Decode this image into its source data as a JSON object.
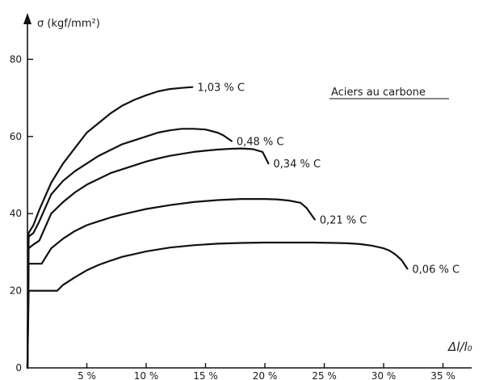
{
  "chart_data": {
    "type": "line",
    "title": "Aciers au carbone",
    "ylabel": "σ (kgf/mm²)",
    "xlabel": "Δl/l₀",
    "xlim": [
      0,
      37
    ],
    "ylim": [
      0,
      88
    ],
    "x_ticks": [
      {
        "value": 5,
        "label": "5 %"
      },
      {
        "value": 10,
        "label": "10 %"
      },
      {
        "value": 15,
        "label": "15 %"
      },
      {
        "value": 20,
        "label": "20 %"
      },
      {
        "value": 25,
        "label": "25 %"
      },
      {
        "value": 30,
        "label": "30 %"
      },
      {
        "value": 35,
        "label": "35 %"
      }
    ],
    "y_ticks": [
      {
        "value": 0,
        "label": "0"
      },
      {
        "value": 20,
        "label": "20"
      },
      {
        "value": 40,
        "label": "40"
      },
      {
        "value": 60,
        "label": "60"
      },
      {
        "value": 80,
        "label": "80"
      }
    ],
    "grid": false,
    "legend": "none",
    "series": [
      {
        "name": "1,03 % C",
        "x": [
          0,
          0.1,
          0.5,
          1,
          2,
          3,
          4,
          5,
          6,
          7,
          8,
          9,
          10,
          11,
          12,
          13,
          13.9
        ],
        "y": [
          0,
          35,
          37,
          41,
          48,
          53,
          57,
          61,
          63.5,
          66,
          68,
          69.5,
          70.7,
          71.7,
          72.3,
          72.6,
          72.8
        ]
      },
      {
        "name": "0,48 % C",
        "x": [
          0,
          0.1,
          0.5,
          1,
          2,
          3,
          4,
          5,
          6,
          7,
          8,
          9,
          10,
          11,
          12,
          13,
          14,
          15,
          16,
          16.5,
          17.2
        ],
        "y": [
          0,
          34,
          35,
          38,
          45,
          48.5,
          51,
          53,
          55,
          56.5,
          58,
          59,
          60,
          61,
          61.6,
          62,
          62,
          61.8,
          61,
          60.3,
          58.8
        ]
      },
      {
        "name": "0,34 % C",
        "x": [
          0,
          0.1,
          0.5,
          1,
          2,
          3,
          4,
          5,
          6,
          7,
          8,
          9,
          10,
          11,
          12,
          13,
          14,
          15,
          16,
          17,
          18,
          19,
          19.8,
          20.3
        ],
        "y": [
          0,
          31,
          32,
          33,
          40,
          43,
          45.5,
          47.5,
          49,
          50.5,
          51.5,
          52.5,
          53.5,
          54.3,
          55,
          55.5,
          56,
          56.3,
          56.6,
          56.8,
          56.9,
          56.7,
          56,
          53
        ]
      },
      {
        "name": "0,21 % C",
        "x": [
          0,
          0.1,
          0.5,
          1,
          1.2,
          2,
          3,
          4,
          5,
          6,
          7,
          8,
          9,
          10,
          12,
          14,
          16,
          18,
          20,
          21,
          22,
          23,
          23.5,
          24.2
        ],
        "y": [
          0,
          27,
          27,
          27,
          27,
          31,
          33.5,
          35.5,
          37,
          38,
          39,
          39.8,
          40.5,
          41.2,
          42.2,
          43,
          43.5,
          43.8,
          43.8,
          43.7,
          43.4,
          42.8,
          41.5,
          38.5
        ]
      },
      {
        "name": "0,06 % C",
        "x": [
          0,
          0.1,
          1,
          2,
          2.5,
          3,
          4,
          5,
          6,
          7,
          8,
          9,
          10,
          12,
          14,
          16,
          18,
          20,
          22,
          24,
          26,
          27,
          28,
          29,
          30,
          30.5,
          31,
          31.5,
          32
        ],
        "y": [
          0,
          20,
          20,
          20,
          20,
          21.5,
          23.5,
          25.3,
          26.7,
          27.8,
          28.8,
          29.5,
          30.2,
          31.2,
          31.8,
          32.2,
          32.4,
          32.5,
          32.5,
          32.5,
          32.4,
          32.3,
          32.1,
          31.7,
          31,
          30.4,
          29.4,
          28,
          25.7
        ]
      }
    ]
  }
}
